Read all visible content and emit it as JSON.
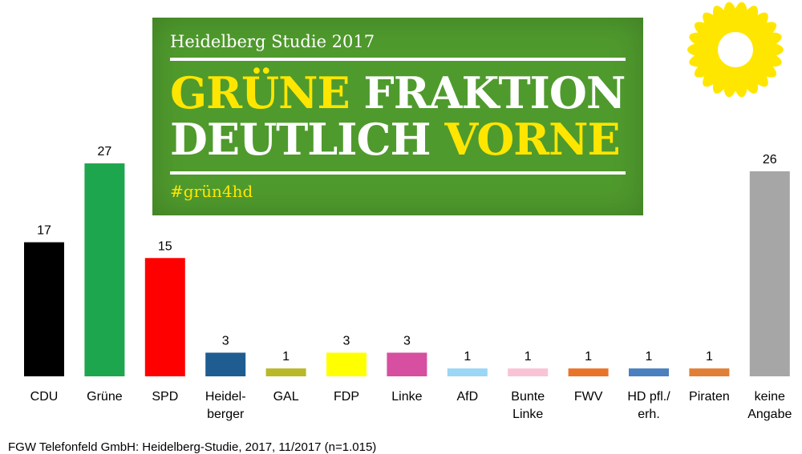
{
  "banner": {
    "subtitle": "Heidelberg Studie 2017",
    "headline_line1_a": "GRÜNE",
    "headline_line1_b": "FRAKTION",
    "headline_line2_a": "DEUTLICH",
    "headline_line2_b": "VORNE",
    "hashtag": "#grün4hd",
    "background_color": "#4f9a2d",
    "highlight_color": "#ffe600"
  },
  "logo": {
    "icon": "sunflower-icon",
    "color": "#ffe600"
  },
  "source": "FGW Telefonfeld GmbH: Heidelberg-Studie, 2017, 11/2017 (n=1.015)",
  "chart_data": {
    "type": "bar",
    "categories": [
      [
        "CDU"
      ],
      [
        "Grüne"
      ],
      [
        "SPD"
      ],
      [
        "Heidel-",
        "berger"
      ],
      [
        "GAL"
      ],
      [
        "FDP"
      ],
      [
        "Linke"
      ],
      [
        "AfD"
      ],
      [
        "Bunte",
        "Linke"
      ],
      [
        "FWV"
      ],
      [
        "HD pfl./",
        "erh."
      ],
      [
        "Piraten"
      ],
      [
        "keine",
        "Angabe"
      ]
    ],
    "values": [
      17,
      27,
      15,
      3,
      1,
      3,
      3,
      1,
      1,
      1,
      1,
      1,
      26
    ],
    "colors": [
      "#000000",
      "#1ea64e",
      "#ff0000",
      "#1f5d91",
      "#b8b829",
      "#ffff00",
      "#d64fa0",
      "#9ad6f5",
      "#f9c3d6",
      "#e8742a",
      "#4a7fc0",
      "#e07f35",
      "#a6a6a6"
    ],
    "ylim": [
      0,
      30
    ],
    "grid": false,
    "legend": "none"
  }
}
